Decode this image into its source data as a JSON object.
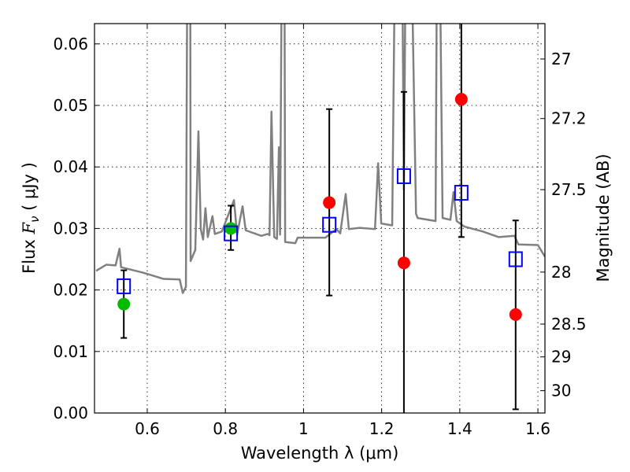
{
  "chart_data": {
    "type": "scatter",
    "title": "",
    "xlabel": "Wavelength  λ (μm)",
    "ylabel_prefix": "Flux ",
    "ylabel_symbol": "F",
    "ylabel_sub": "ν",
    "ylabel_suffix": " ( μJy )",
    "y2label": "Magnitude (AB)",
    "xlim": [
      0.465,
      1.618
    ],
    "ylim": [
      0,
      0.0633
    ],
    "grid": true,
    "x_ticks": [
      0.6,
      0.8,
      1.0,
      1.2,
      1.4,
      1.6
    ],
    "x_tick_labels": [
      "0.6",
      "0.8",
      "1",
      "1.2",
      "1.4",
      "1.6"
    ],
    "y_ticks": [
      0,
      0.01,
      0.02,
      0.03,
      0.04,
      0.05,
      0.06
    ],
    "y_tick_labels": [
      "0.00",
      "0.01",
      "0.02",
      "0.03",
      "0.04",
      "0.05",
      "0.06"
    ],
    "y2_ticks": [
      27,
      27.2,
      27.5,
      28,
      28.5,
      29,
      30
    ],
    "y2_tick_labels": [
      "27",
      "27.2",
      "27.5",
      "28",
      "28.5",
      "29",
      "30"
    ],
    "y2_relation": "AB mag = 23.9 - 2.5 log10(flux in μJy)",
    "spectrum": {
      "name": "model spectrum",
      "color": "#808080",
      "x": [
        0.469,
        0.495,
        0.519,
        0.529,
        0.533,
        0.59,
        0.642,
        0.683,
        0.691,
        0.699,
        0.703,
        0.71,
        0.711,
        0.723,
        0.731,
        0.737,
        0.743,
        0.749,
        0.755,
        0.767,
        0.773,
        0.791,
        0.822,
        0.83,
        0.844,
        0.852,
        0.892,
        0.908,
        0.913,
        0.918,
        0.925,
        0.932,
        0.937,
        0.94,
        0.945,
        0.951,
        0.953,
        0.979,
        0.985,
        1.025,
        1.056,
        1.084,
        1.094,
        1.108,
        1.116,
        1.144,
        1.183,
        1.191,
        1.199,
        1.227,
        1.235,
        1.252,
        1.257,
        1.262,
        1.275,
        1.288,
        1.292,
        1.338,
        1.342,
        1.348,
        1.356,
        1.376,
        1.384,
        1.392,
        1.412,
        1.459,
        1.499,
        1.54,
        1.55,
        1.6,
        1.618
      ],
      "y": [
        0.0231,
        0.0241,
        0.024,
        0.0267,
        0.0237,
        0.0228,
        0.0218,
        0.0217,
        0.0195,
        0.0205,
        0.08,
        0.08,
        0.0247,
        0.0265,
        0.0458,
        0.0299,
        0.0282,
        0.0333,
        0.0286,
        0.032,
        0.0291,
        0.0295,
        0.0346,
        0.029,
        0.0336,
        0.0297,
        0.0288,
        0.0291,
        0.0289,
        0.049,
        0.0286,
        0.0283,
        0.0432,
        0.029,
        0.08,
        0.08,
        0.0278,
        0.0276,
        0.0285,
        0.0285,
        0.0285,
        0.0299,
        0.0292,
        0.0356,
        0.0299,
        0.0301,
        0.0299,
        0.0406,
        0.0308,
        0.0305,
        0.08,
        0.08,
        0.0363,
        0.08,
        0.08,
        0.0324,
        0.0317,
        0.0312,
        0.08,
        0.08,
        0.0317,
        0.0314,
        0.0359,
        0.0312,
        0.0303,
        0.0295,
        0.0286,
        0.0288,
        0.0274,
        0.0273,
        0.0254
      ]
    },
    "series": [
      {
        "name": "observed (green)",
        "color": "#00bb00",
        "marker": "circle",
        "x": [
          0.54,
          0.814
        ],
        "y": [
          0.0177,
          0.03
        ]
      },
      {
        "name": "observed (red)",
        "color": "#ff0000",
        "marker": "circle",
        "x": [
          1.066,
          1.257,
          1.404,
          1.543
        ],
        "y": [
          0.0342,
          0.0244,
          0.051,
          0.016
        ]
      },
      {
        "name": "model photometry",
        "color": "#0000ff",
        "marker": "open-square",
        "x": [
          0.54,
          0.814,
          1.066,
          1.257,
          1.404,
          1.543
        ],
        "y": [
          0.0206,
          0.0292,
          0.0306,
          0.0385,
          0.0358,
          0.025
        ],
        "err_low": [
          0.0122,
          0.0265,
          0.0191,
          -0.01,
          0.0286,
          0.0006
        ],
        "err_high": [
          0.0232,
          0.0337,
          0.0494,
          0.0522,
          0.08,
          0.0313
        ]
      }
    ]
  }
}
